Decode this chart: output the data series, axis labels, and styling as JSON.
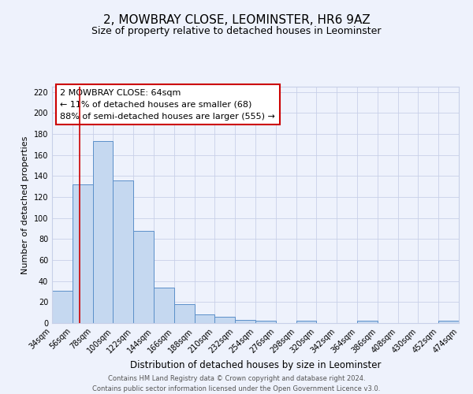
{
  "title": "2, MOWBRAY CLOSE, LEOMINSTER, HR6 9AZ",
  "subtitle": "Size of property relative to detached houses in Leominster",
  "xlabel": "Distribution of detached houses by size in Leominster",
  "ylabel": "Number of detached properties",
  "footer_lines": [
    "Contains HM Land Registry data © Crown copyright and database right 2024.",
    "Contains public sector information licensed under the Open Government Licence v3.0."
  ],
  "bin_labels": [
    "34sqm",
    "56sqm",
    "78sqm",
    "100sqm",
    "122sqm",
    "144sqm",
    "166sqm",
    "188sqm",
    "210sqm",
    "232sqm",
    "254sqm",
    "276sqm",
    "298sqm",
    "320sqm",
    "342sqm",
    "364sqm",
    "386sqm",
    "408sqm",
    "430sqm",
    "452sqm",
    "474sqm"
  ],
  "bar_values": [
    31,
    132,
    173,
    136,
    88,
    34,
    18,
    8,
    6,
    3,
    2,
    0,
    2,
    0,
    0,
    2,
    0,
    0,
    0,
    2
  ],
  "bin_edges_start": [
    34,
    56,
    78,
    100,
    122,
    144,
    166,
    188,
    210,
    232,
    254,
    276,
    298,
    320,
    342,
    364,
    386,
    408,
    430,
    452
  ],
  "bin_width": 22,
  "ylim": [
    0,
    225
  ],
  "yticks": [
    0,
    20,
    40,
    60,
    80,
    100,
    120,
    140,
    160,
    180,
    200,
    220
  ],
  "bar_color": "#c5d8f0",
  "bar_edge_color": "#5b8fc9",
  "grid_color": "#c8d0e8",
  "property_line_x": 64,
  "property_line_color": "#cc0000",
  "annotation_box_text_line1": "2 MOWBRAY CLOSE: 64sqm",
  "annotation_box_text_line2": "← 11% of detached houses are smaller (68)",
  "annotation_box_text_line3": "88% of semi-detached houses are larger (555) →",
  "annotation_fontsize": 8,
  "title_fontsize": 11,
  "subtitle_fontsize": 9,
  "xlabel_fontsize": 8.5,
  "ylabel_fontsize": 8,
  "tick_fontsize": 7,
  "background_color": "#eef2fc",
  "footer_fontsize": 6
}
